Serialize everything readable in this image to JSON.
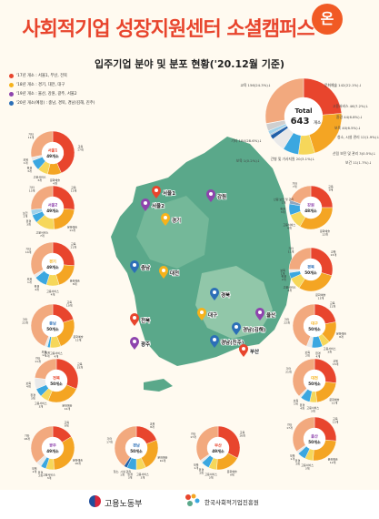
{
  "header": {
    "title": "사회적기업 성장지원센터 소셜캠퍼스",
    "badge": "온",
    "subtitle": "입주기업 분야 및 분포 현황('20.12월 기준)"
  },
  "legend": [
    {
      "label": "'17년 개소 : 서울1, 부산, 전북",
      "color": "#e8452d"
    },
    {
      "label": "'18년 개소 : 경기, 대전, 대구",
      "color": "#f6b21b"
    },
    {
      "label": "'19년 개소 : 울산, 강원, 광주, 서울2",
      "color": "#8e44ad"
    },
    {
      "label": "'20년 개소(예정) : 충남, 경북, 경남(김해, 진주)",
      "color": "#2c6fb7"
    }
  ],
  "colors": {
    "교육": "#e8452d",
    "문화예술": "#f4a523",
    "고용서비스": "#f6d75a",
    "환경": "#3ba7e0",
    "청소·시설관리": "#1f5fa8",
    "산림보전 및 관리": "#8fa6bf",
    "간병 및 가사지원": "#cfcfcf",
    "보육": "#e9e9e9",
    "기타": "#f2a97e",
    "map": "#5aa88a",
    "map_light": "#a8d4b6"
  },
  "total": {
    "label": "Total",
    "value": "643",
    "unit": "개소"
  },
  "footer": {
    "ministry": "고용노동부",
    "agency": "한국사회적기업진흥원"
  },
  "chart_data": [
    {
      "type": "pie",
      "title": "Total",
      "total": 643,
      "series": [
        {
          "category": "교육",
          "value": 156,
          "share": 24.3
        },
        {
          "category": "문화예술",
          "value": 142,
          "share": 22.1
        },
        {
          "category": "고용서비스",
          "value": 46,
          "share": 7.2
        },
        {
          "category": "환경",
          "value": 44,
          "share": 6.8
        },
        {
          "category": "보육",
          "value": 40,
          "share": 6.5
        },
        {
          "category": "청소, 시설 관리",
          "value": 12,
          "share": 1.9
        },
        {
          "category": "산림 보전 및 관리",
          "value": 3,
          "share": 0.5
        },
        {
          "category": "보건",
          "value": 11,
          "share": 1.7
        },
        {
          "category": "간병 및 가사지원",
          "value": 20,
          "share": 3.1
        },
        {
          "category": "보육",
          "value": 1,
          "share": 0.2
        },
        {
          "category": "기타",
          "value": 184,
          "share": 28.6
        }
      ],
      "labels": [
        "교육 156(24.3%)↓",
        "문화예술 142(22.1%)↓",
        "고용서비스 46(7.2%)↓",
        "환경 44(6.8%)↓",
        "보육 40(6.5%)↓",
        "청소, 시설 관리 12(1.9%)↓",
        "산림 보전 및 관리 3(0.5%)↓",
        "보건 11(1.7%)↓",
        "간병 및 가사지원 20(3.1%)↓",
        "보육 1(0.2%)↓",
        "기타 184(28.6%)↓"
      ]
    },
    {
      "type": "pie",
      "title": "서울1",
      "total": 49,
      "series": [
        {
          "category": "교육",
          "value": 17
        },
        {
          "category": "문화예술",
          "value": 4
        },
        {
          "category": "고용서비스",
          "value": 3
        },
        {
          "category": "환경",
          "value": 3
        },
        {
          "category": "보육",
          "value": 1
        },
        {
          "category": "기타",
          "value": 11
        }
      ]
    },
    {
      "type": "pie",
      "title": "서울2",
      "total": 49,
      "series": [
        {
          "category": "교육",
          "value": 13
        },
        {
          "category": "문화예술",
          "value": 11
        },
        {
          "category": "고용서비스",
          "value": 7
        },
        {
          "category": "환경",
          "value": 3
        },
        {
          "category": "보건",
          "value": 2
        },
        {
          "category": "기타",
          "value": 13
        }
      ]
    },
    {
      "type": "pie",
      "title": "경기",
      "total": 49,
      "series": [
        {
          "category": "교육",
          "value": 11
        },
        {
          "category": "문화예술",
          "value": 8
        },
        {
          "category": "고용서비스",
          "value": 4
        },
        {
          "category": "환경",
          "value": 4
        },
        {
          "category": "보육",
          "value": 1
        },
        {
          "category": "기타",
          "value": 14
        }
      ]
    },
    {
      "type": "pie",
      "title": "충남",
      "total": 50,
      "series": [
        {
          "category": "교육",
          "value": 10
        },
        {
          "category": "문화예술",
          "value": 12
        },
        {
          "category": "고용서비스",
          "value": 4
        },
        {
          "category": "환경",
          "value": 1
        },
        {
          "category": "보육",
          "value": 1
        },
        {
          "category": "기타",
          "value": 22
        }
      ]
    },
    {
      "type": "pie",
      "title": "전북",
      "total": 50,
      "series": [
        {
          "category": "교육",
          "value": 15
        },
        {
          "category": "문화예술",
          "value": 12
        },
        {
          "category": "고용서비스",
          "value": 3
        },
        {
          "category": "환경",
          "value": 3
        },
        {
          "category": "보육",
          "value": 4
        },
        {
          "category": "기타",
          "value": 11
        }
      ]
    },
    {
      "type": "pie",
      "title": "광주",
      "total": 49,
      "series": [
        {
          "category": "교육",
          "value": 8
        },
        {
          "category": "문화예술",
          "value": 16
        },
        {
          "category": "고용서비스",
          "value": 3
        },
        {
          "category": "환경",
          "value": 2
        },
        {
          "category": "보육",
          "value": 2
        },
        {
          "category": "기타",
          "value": 18
        }
      ]
    },
    {
      "type": "pie",
      "title": "경남",
      "total": 50,
      "series": [
        {
          "category": "교육",
          "value": 8
        },
        {
          "category": "문화예술",
          "value": 10
        },
        {
          "category": "고용서비스",
          "value": 3
        },
        {
          "category": "환경",
          "value": 3
        },
        {
          "category": "청소, 시설 관리",
          "value": 1
        },
        {
          "category": "기타",
          "value": 17
        }
      ]
    },
    {
      "type": "pie",
      "title": "부산",
      "total": 49,
      "series": [
        {
          "category": "교육",
          "value": 16
        },
        {
          "category": "문화예술",
          "value": 9
        },
        {
          "category": "고용서비스",
          "value": 3
        },
        {
          "category": "환경",
          "value": 3
        },
        {
          "category": "보육",
          "value": 1
        },
        {
          "category": "기타",
          "value": 17
        }
      ]
    },
    {
      "type": "pie",
      "title": "강원",
      "total": 48,
      "series": [
        {
          "category": "교육",
          "value": 9
        },
        {
          "category": "문화예술",
          "value": 12
        },
        {
          "category": "고용서비스",
          "value": 4
        },
        {
          "category": "환경",
          "value": 3
        },
        {
          "category": "산림 보전 및 관리",
          "value": 1
        },
        {
          "category": "기타",
          "value": 7
        }
      ]
    },
    {
      "type": "pie",
      "title": "경북",
      "total": 50,
      "series": [
        {
          "category": "교육",
          "value": 13
        },
        {
          "category": "문화예술",
          "value": 13
        },
        {
          "category": "고용서비스",
          "value": 4
        },
        {
          "category": "환경",
          "value": 2
        },
        {
          "category": "보육",
          "value": 1
        },
        {
          "category": "기타",
          "value": 11
        }
      ]
    },
    {
      "type": "pie",
      "title": "대구",
      "total": 50,
      "series": [
        {
          "category": "교육",
          "value": 11
        },
        {
          "category": "문화예술",
          "value": 8
        },
        {
          "category": "고용서비스",
          "value": 3
        },
        {
          "category": "환경",
          "value": 4
        },
        {
          "category": "보육",
          "value": 2
        },
        {
          "category": "기타",
          "value": 22
        }
      ]
    },
    {
      "type": "pie",
      "title": "대전",
      "total": 50,
      "series": [
        {
          "category": "교육",
          "value": 15
        },
        {
          "category": "문화예술",
          "value": 12
        },
        {
          "category": "고용서비스",
          "value": 3
        },
        {
          "category": "환경",
          "value": 4
        },
        {
          "category": "보육",
          "value": 1
        },
        {
          "category": "기타",
          "value": 21
        }
      ]
    },
    {
      "type": "pie",
      "title": "울산",
      "total": 50,
      "series": [
        {
          "category": "교육",
          "value": 13
        },
        {
          "category": "문화예술",
          "value": 12
        },
        {
          "category": "고용서비스",
          "value": 3
        },
        {
          "category": "환경",
          "value": 3
        },
        {
          "category": "보육",
          "value": 1
        },
        {
          "category": "기타",
          "value": 17
        }
      ]
    }
  ],
  "map_labels": [
    {
      "text": "서울1",
      "color": "#e8452d"
    },
    {
      "text": "서울2",
      "color": "#8e44ad"
    },
    {
      "text": "경기",
      "color": "#f6b21b"
    },
    {
      "text": "강원",
      "color": "#8e44ad"
    },
    {
      "text": "충남",
      "color": "#2c6fb7"
    },
    {
      "text": "대전",
      "color": "#f6b21b"
    },
    {
      "text": "경북",
      "color": "#2c6fb7"
    },
    {
      "text": "대구",
      "color": "#f6b21b"
    },
    {
      "text": "전북",
      "color": "#e8452d"
    },
    {
      "text": "울산",
      "color": "#8e44ad"
    },
    {
      "text": "경남(김해)",
      "color": "#2c6fb7"
    },
    {
      "text": "경남(진주)",
      "color": "#2c6fb7"
    },
    {
      "text": "부산",
      "color": "#e8452d"
    },
    {
      "text": "광주",
      "color": "#8e44ad"
    }
  ]
}
